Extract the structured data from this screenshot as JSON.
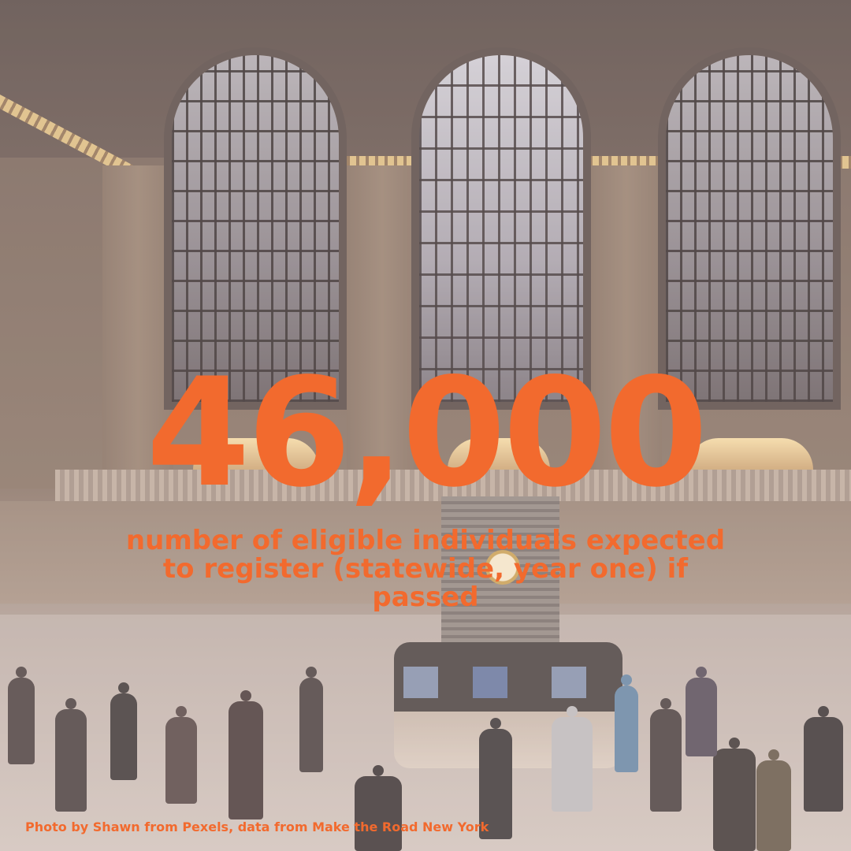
{
  "stat": {
    "value": "46,000",
    "caption": "number of eligible individuals expected to register (statewide, year one) if passed"
  },
  "credit": "Photo by Shawn from Pexels, data from Make the Road New York",
  "colors": {
    "accent": "#F26A2E"
  },
  "background_photo": {
    "subject": "station main concourse with arched windows, balcony, information booth with clock and crowd of people"
  }
}
